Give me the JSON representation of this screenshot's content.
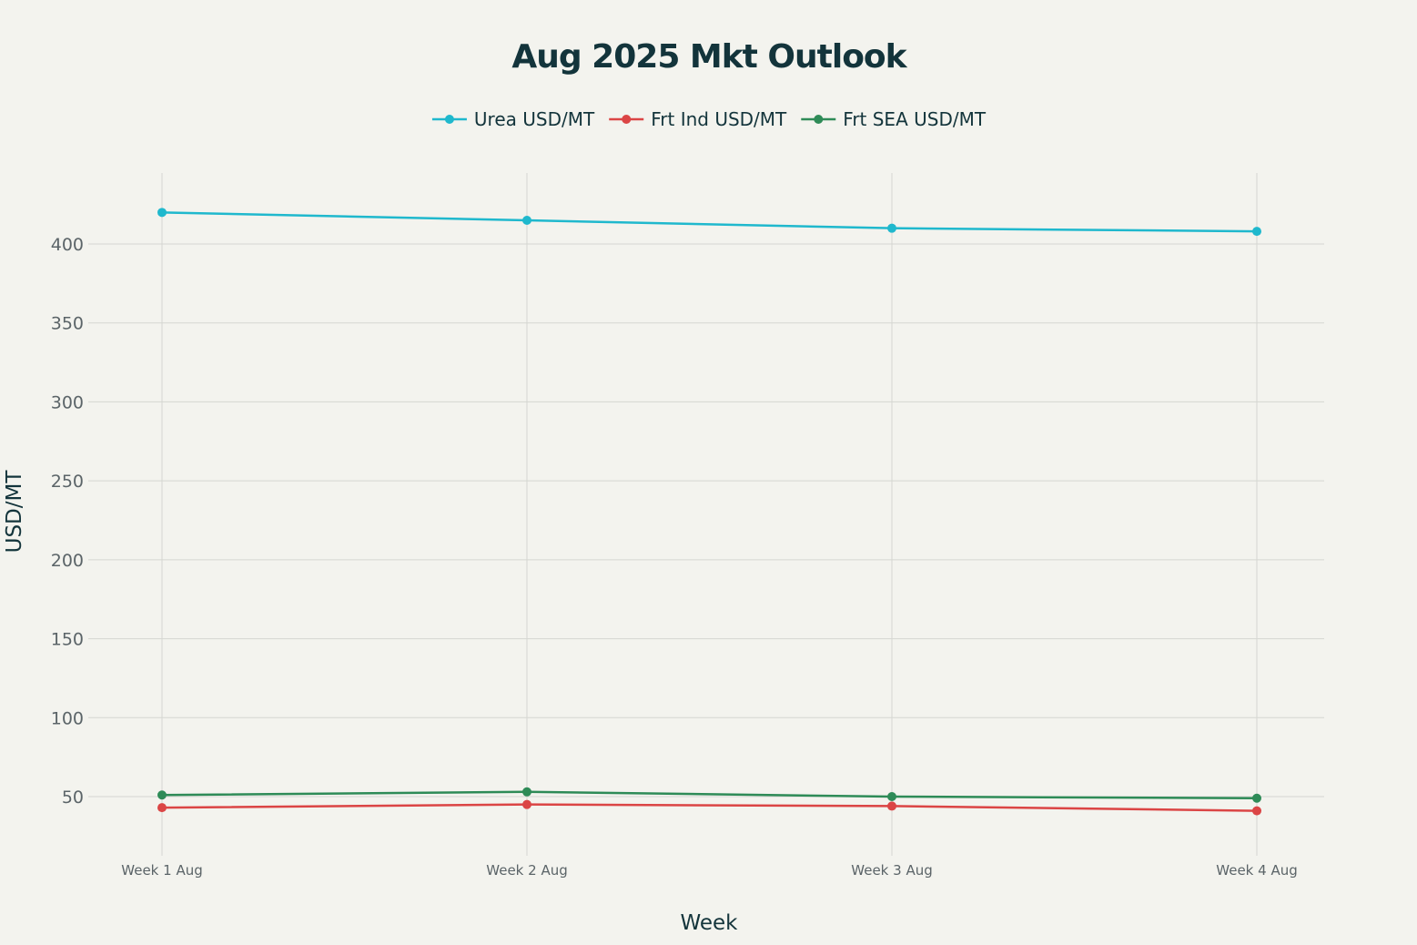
{
  "chart_data": {
    "type": "line",
    "title": "Aug 2025 Mkt Outlook",
    "xlabel": "Week",
    "ylabel": "USD/MT",
    "categories": [
      "Week 1 Aug",
      "Week 2 Aug",
      "Week 3 Aug",
      "Week 4 Aug"
    ],
    "ylim": [
      20,
      445
    ],
    "yticks": [
      50,
      100,
      150,
      200,
      250,
      300,
      350,
      400
    ],
    "grid": true,
    "legend_position": "top-center",
    "series": [
      {
        "name": "Urea USD/MT",
        "color": "#1fb8cd",
        "values": [
          420,
          415,
          410,
          408
        ]
      },
      {
        "name": "Frt Ind USD/MT",
        "color": "#db4545",
        "values": [
          43,
          45,
          44,
          41
        ]
      },
      {
        "name": "Frt SEA USD/MT",
        "color": "#2e8b57",
        "values": [
          51,
          53,
          50,
          49
        ]
      }
    ]
  }
}
